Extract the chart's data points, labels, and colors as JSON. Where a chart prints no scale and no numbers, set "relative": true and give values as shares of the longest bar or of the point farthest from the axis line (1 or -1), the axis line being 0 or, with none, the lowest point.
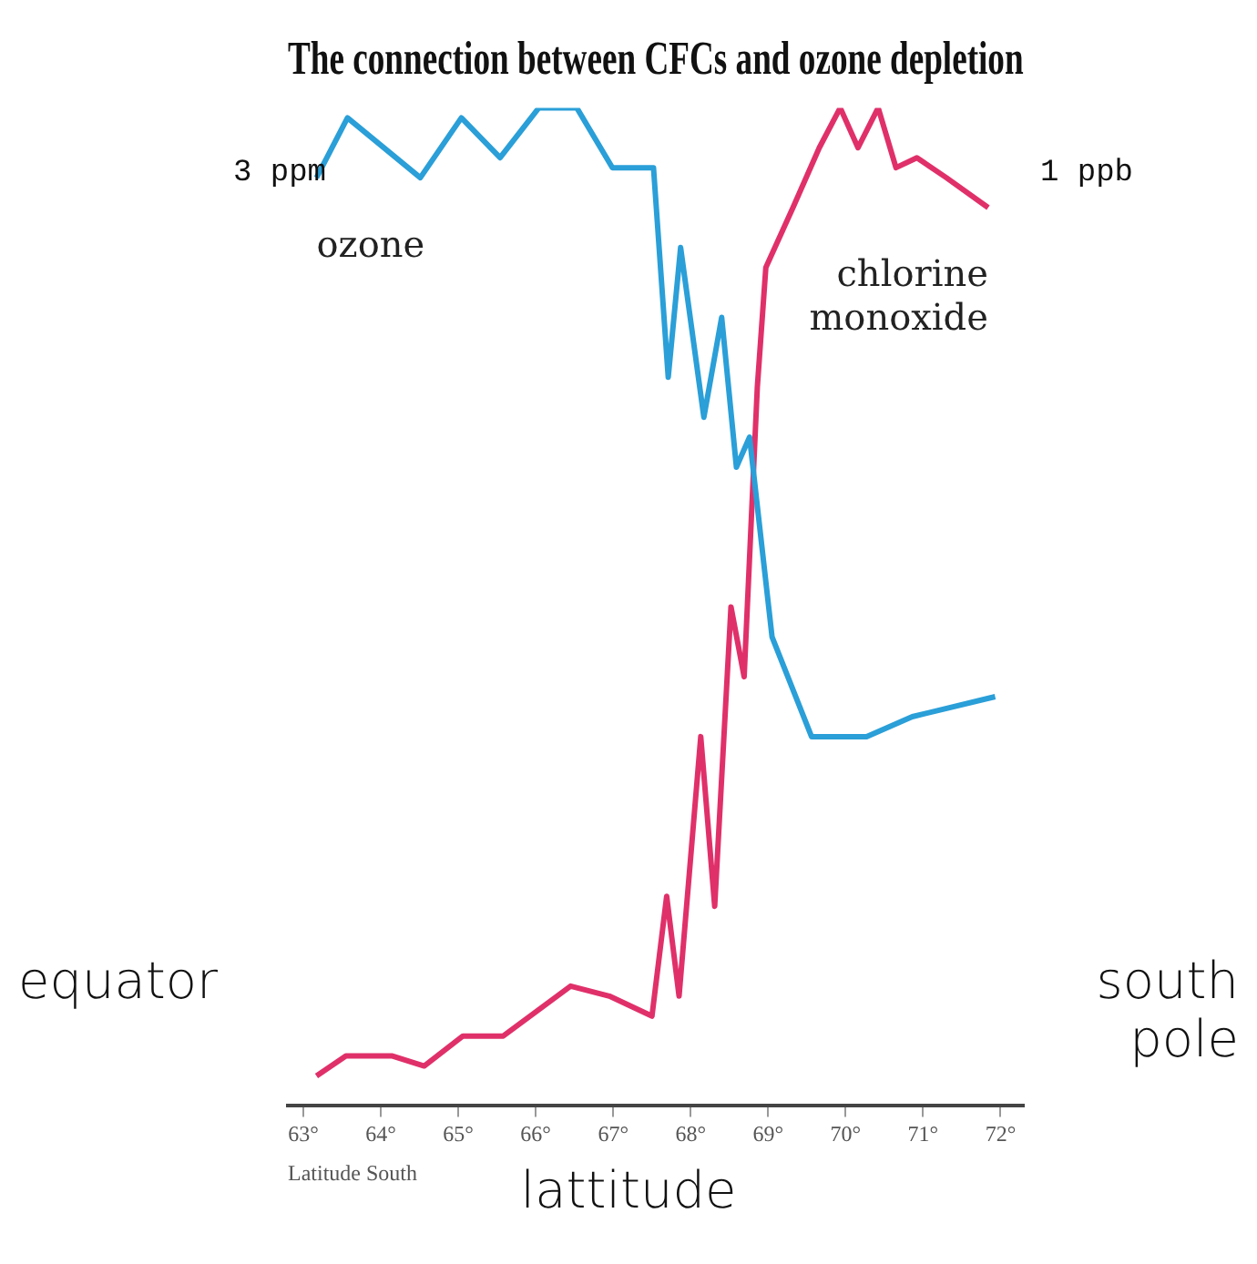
{
  "chart_data": {
    "type": "line",
    "title": "The connection between CFCs and ozone depletion",
    "xlabel": "Latitude South",
    "relative": true,
    "annotations": [
      "3 ppm",
      "1 ppb",
      "equator",
      "south pole",
      "lattitude"
    ],
    "xlim": [
      62.8,
      72.3
    ],
    "xticks": [
      {
        "value": 63,
        "label": "63°"
      },
      {
        "value": 64,
        "label": "64°"
      },
      {
        "value": 65,
        "label": "65°"
      },
      {
        "value": 66,
        "label": "66°"
      },
      {
        "value": 67,
        "label": "67°"
      },
      {
        "value": 68,
        "label": "68°"
      },
      {
        "value": 69,
        "label": "69°"
      },
      {
        "value": 70,
        "label": "70°"
      },
      {
        "value": 71,
        "label": "71°"
      },
      {
        "value": 72,
        "label": "72°"
      }
    ],
    "grid": false,
    "legend": false,
    "marker": "none",
    "line_style": "solid",
    "series": [
      {
        "name": "ozone",
        "color": "#2a9fd8",
        "x": [
          63.17,
          63.57,
          64.51,
          65.04,
          65.54,
          66.04,
          66.53,
          66.99,
          67.52,
          67.71,
          67.87,
          68.17,
          68.4,
          68.59,
          68.76,
          69.05,
          69.56,
          70.27,
          70.86,
          71.93
        ],
        "values": [
          0.93,
          0.99,
          0.93,
          0.99,
          0.95,
          1,
          1,
          0.94,
          0.94,
          0.73,
          0.86,
          0.69,
          0.79,
          0.64,
          0.67,
          0.47,
          0.37,
          0.37,
          0.39,
          0.41
        ]
      },
      {
        "name": "chlorine monoxide",
        "color": "#e0306a",
        "x": [
          63.17,
          63.55,
          64.15,
          64.56,
          65.06,
          65.58,
          66.45,
          66.95,
          67.5,
          67.69,
          67.85,
          68.13,
          68.31,
          68.52,
          68.69,
          68.86,
          68.97,
          69.32,
          69.66,
          69.93,
          70.16,
          70.42,
          70.65,
          70.92,
          71.3,
          71.84
        ],
        "values": [
          0.03,
          0.05,
          0.05,
          0.04,
          0.07,
          0.07,
          0.12,
          0.11,
          0.09,
          0.21,
          0.11,
          0.37,
          0.2,
          0.5,
          0.43,
          0.72,
          0.84,
          0.9,
          0.96,
          1,
          0.96,
          1,
          0.94,
          0.95,
          0.93,
          0.9
        ]
      }
    ]
  }
}
